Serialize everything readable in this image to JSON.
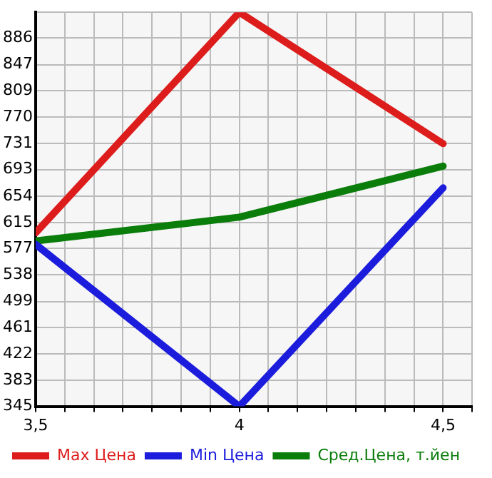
{
  "chart_data": {
    "type": "line",
    "x": [
      3.5,
      4,
      4.5
    ],
    "series": [
      {
        "name": "Max Цена",
        "color": "#dd1c1c",
        "values": [
          600,
          924,
          731
        ]
      },
      {
        "name": "Min Цена",
        "color": "#1c1cdd",
        "values": [
          583,
          345,
          666
        ]
      },
      {
        "name": "Сред.Цена, т.йен",
        "color": "#0a7d0a",
        "values": [
          588,
          623,
          698
        ]
      }
    ],
    "xlim": [
      3.5,
      4.571
    ],
    "xticks": [
      {
        "value": 3.5,
        "label": "3,5"
      },
      {
        "value": 3.571,
        "label": null
      },
      {
        "value": 3.643,
        "label": null
      },
      {
        "value": 3.714,
        "label": null
      },
      {
        "value": 3.786,
        "label": null
      },
      {
        "value": 3.857,
        "label": null
      },
      {
        "value": 3.929,
        "label": null
      },
      {
        "value": 4,
        "label": "4"
      },
      {
        "value": 4.071,
        "label": null
      },
      {
        "value": 4.143,
        "label": null
      },
      {
        "value": 4.214,
        "label": null
      },
      {
        "value": 4.286,
        "label": null
      },
      {
        "value": 4.357,
        "label": null
      },
      {
        "value": 4.429,
        "label": null
      },
      {
        "value": 4.5,
        "label": "4,5"
      },
      {
        "value": 4.571,
        "label": null
      }
    ],
    "ylim": [
      345,
      924
    ],
    "yticks": [
      345,
      383,
      422,
      461,
      499,
      538,
      577,
      615,
      654,
      693,
      731,
      770,
      809,
      847,
      886,
      {
        "value": 924,
        "label": null
      }
    ],
    "grid": true,
    "legend": "bottom",
    "marker": "none",
    "line_style": "solid"
  }
}
